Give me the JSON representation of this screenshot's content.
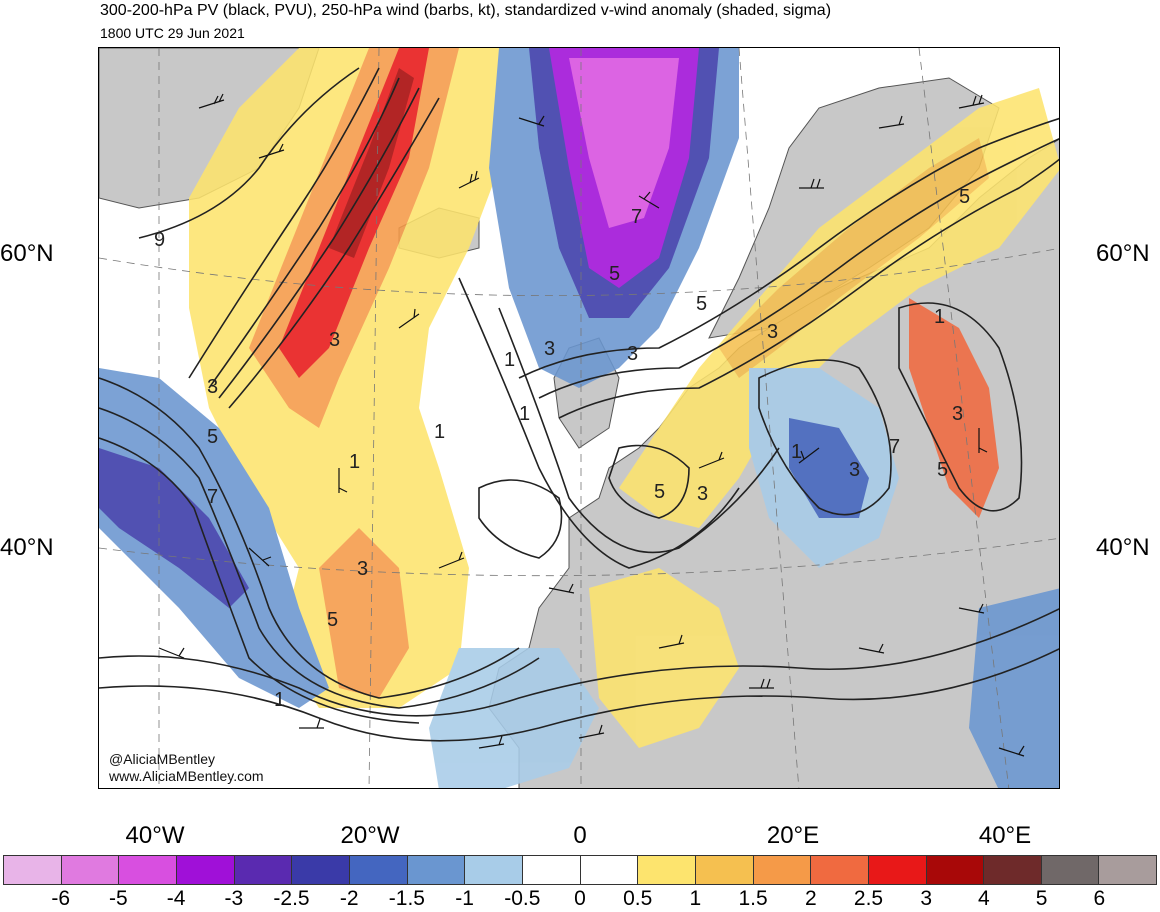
{
  "header": {
    "title": "300-200-hPa PV (black, PVU), 250-hPa wind (barbs, kt), standardized v-wind anomaly (shaded, sigma)",
    "subtitle": "1800 UTC 29 Jun 2021"
  },
  "map": {
    "lat_labels": {
      "left_60": "60°N",
      "right_60": "60°N",
      "left_40": "40°N",
      "right_40": "40°N"
    },
    "lon_labels": [
      "40°W",
      "20°W",
      "0",
      "20°E",
      "40°E"
    ],
    "credit": {
      "handle": "@AliciaMBentley",
      "url": "www.AliciaMBentley.com"
    },
    "contour_labels": [
      "9",
      "3",
      "5",
      "7",
      "1",
      "3",
      "5",
      "1",
      "3",
      "5",
      "7",
      "5",
      "3",
      "1",
      "1",
      "3",
      "5",
      "3",
      "1",
      "3",
      "5",
      "3",
      "1",
      "7",
      "5",
      "3",
      "1"
    ],
    "colors": {
      "land": "#c8c8c8",
      "ocean": "#ffffff",
      "coast": "#555555",
      "contour": "#222222"
    }
  },
  "colorbar": {
    "labels": [
      "-6",
      "-5",
      "-4",
      "-3",
      "-2.5",
      "-2",
      "-1.5",
      "-1",
      "-0.5",
      "0",
      "0.5",
      "1",
      "1.5",
      "2",
      "2.5",
      "3",
      "4",
      "5",
      "6"
    ],
    "colors": [
      "#e8b4e8",
      "#e07ae0",
      "#d84fe0",
      "#a010d8",
      "#5a2ab0",
      "#3a3aa8",
      "#4466c0",
      "#6a96d0",
      "#a8cce8",
      "#ffffff",
      "#ffffff",
      "#fde46e",
      "#f5c050",
      "#f59a48",
      "#f06a40",
      "#e81818",
      "#a80808",
      "#6e2a2a",
      "#706868",
      "#a89c9c"
    ]
  }
}
